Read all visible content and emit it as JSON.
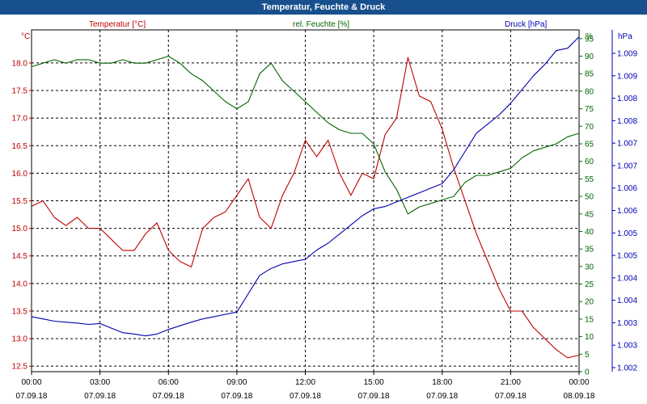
{
  "window": {
    "title": "Temperatur, Feuchte & Druck"
  },
  "colors": {
    "temperature": "#c00000",
    "humidity": "#006400",
    "pressure": "#0000b0",
    "titlebar": "#17508c"
  },
  "chart_data": {
    "type": "line",
    "title": "Temperatur, Feuchte & Druck",
    "legend_placement": "top",
    "grid": true,
    "x_ticks": [
      {
        "time": "00:00",
        "date": "07.09.18"
      },
      {
        "time": "03:00",
        "date": "07.09.18"
      },
      {
        "time": "06:00",
        "date": "07.09.18"
      },
      {
        "time": "09:00",
        "date": "07.09.18"
      },
      {
        "time": "12:00",
        "date": "07.09.18"
      },
      {
        "time": "15:00",
        "date": "07.09.18"
      },
      {
        "time": "18:00",
        "date": "07.09.18"
      },
      {
        "time": "21:00",
        "date": "07.09.18"
      },
      {
        "time": "00:00",
        "date": "08.09.18"
      }
    ],
    "x_range_hours": [
      0,
      24
    ],
    "axes": {
      "temperature": {
        "unit": "°C",
        "range": [
          12.4,
          18.6
        ],
        "ticks": [
          "12.5",
          "13.0",
          "13.5",
          "14.0",
          "14.5",
          "15.0",
          "15.5",
          "16.0",
          "16.5",
          "17.0",
          "17.5",
          "18.0"
        ]
      },
      "humidity": {
        "unit": "%",
        "range": [
          0,
          97.5
        ],
        "ticks": [
          "0",
          "5",
          "10",
          "15",
          "20",
          "25",
          "30",
          "35",
          "40",
          "45",
          "50",
          "55",
          "60",
          "65",
          "70",
          "75",
          "80",
          "85",
          "90",
          "95"
        ]
      },
      "pressure": {
        "unit": "hPa",
        "range": [
          1001.9,
          1009.35
        ],
        "ticks": [
          "1.002",
          "1.003",
          "1.003",
          "1.004",
          "1.004",
          "1.005",
          "1.005",
          "1.006",
          "1.006",
          "1.007",
          "1.007",
          "1.008",
          "1.008",
          "1.009",
          "1.009"
        ]
      }
    },
    "series": [
      {
        "name": "Temperatur [°C]",
        "axis": "temperature",
        "x": [
          0,
          0.5,
          1,
          1.5,
          2,
          2.5,
          3,
          3.5,
          4,
          4.5,
          5,
          5.5,
          6,
          6.5,
          7,
          7.5,
          8,
          8.5,
          9,
          9.5,
          10,
          10.5,
          11,
          11.5,
          12,
          12.5,
          13,
          13.5,
          14,
          14.5,
          15,
          15.5,
          16,
          16.5,
          17,
          17.5,
          18,
          18.5,
          19,
          19.5,
          20,
          20.5,
          21,
          21.5,
          22,
          22.5,
          23,
          23.5,
          24
        ],
        "values": [
          15.4,
          15.5,
          15.2,
          15.05,
          15.2,
          15.0,
          15.0,
          14.8,
          14.6,
          14.6,
          14.9,
          15.1,
          14.6,
          14.4,
          14.3,
          15.0,
          15.2,
          15.3,
          15.6,
          15.9,
          15.2,
          15.0,
          15.6,
          16.0,
          16.6,
          16.3,
          16.6,
          16.0,
          15.6,
          16.0,
          15.9,
          16.7,
          17.0,
          18.1,
          17.4,
          17.3,
          16.8,
          16.1,
          15.5,
          14.9,
          14.4,
          13.9,
          13.5,
          13.5,
          13.2,
          13.0,
          12.8,
          12.65,
          12.7
        ]
      },
      {
        "name": "rel. Feuchte [%]",
        "axis": "humidity",
        "x": [
          0,
          0.5,
          1,
          1.5,
          2,
          2.5,
          3,
          3.5,
          4,
          4.5,
          5,
          5.5,
          6,
          6.5,
          7,
          7.5,
          8,
          8.5,
          9,
          9.5,
          10,
          10.5,
          11,
          11.5,
          12,
          12.5,
          13,
          13.5,
          14,
          14.5,
          15,
          15.5,
          16,
          16.5,
          17,
          17.5,
          18,
          18.5,
          19,
          19.5,
          20,
          20.5,
          21,
          21.5,
          22,
          22.5,
          23,
          23.5,
          24
        ],
        "values": [
          87,
          88,
          89,
          88,
          89,
          89,
          88,
          88,
          89,
          88,
          88,
          89,
          90,
          88,
          85,
          83,
          80,
          77,
          75,
          77,
          85,
          88,
          83,
          80,
          77,
          74,
          71,
          69,
          68,
          68,
          65,
          57,
          52,
          45,
          47,
          48,
          49,
          50,
          54,
          56,
          56,
          57,
          58,
          61,
          63,
          64,
          65,
          67,
          68
        ]
      },
      {
        "name": "Druck [hPa]",
        "axis": "pressure",
        "x": [
          0,
          0.5,
          1,
          1.5,
          2,
          2.5,
          3,
          3.5,
          4,
          4.5,
          5,
          5.5,
          6,
          6.5,
          7,
          7.5,
          8,
          8.5,
          9,
          9.5,
          10,
          10.5,
          11,
          11.5,
          12,
          12.5,
          13,
          13.5,
          14,
          14.5,
          15,
          15.5,
          16,
          16.5,
          17,
          17.5,
          18,
          18.5,
          19,
          19.5,
          20,
          20.5,
          21,
          21.5,
          22,
          22.5,
          23,
          23.5,
          24
        ],
        "values": [
          1003.1,
          1003.05,
          1003.0,
          1002.98,
          1002.96,
          1002.93,
          1002.95,
          1002.85,
          1002.75,
          1002.72,
          1002.68,
          1002.72,
          1002.82,
          1002.9,
          1002.98,
          1003.05,
          1003.1,
          1003.15,
          1003.2,
          1003.6,
          1004.0,
          1004.15,
          1004.25,
          1004.3,
          1004.35,
          1004.55,
          1004.7,
          1004.9,
          1005.1,
          1005.3,
          1005.45,
          1005.5,
          1005.6,
          1005.7,
          1005.8,
          1005.9,
          1006.0,
          1006.3,
          1006.7,
          1007.1,
          1007.3,
          1007.5,
          1007.75,
          1008.05,
          1008.35,
          1008.6,
          1008.9,
          1008.95,
          1009.2
        ]
      }
    ]
  }
}
